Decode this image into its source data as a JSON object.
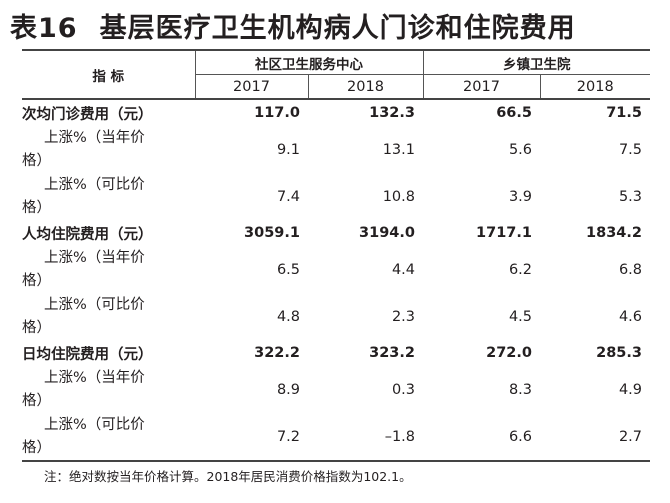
{
  "title": {
    "number": "表16",
    "text": "基层医疗卫生机构病人门诊和住院费用"
  },
  "header": {
    "indicator": "指 标",
    "groups": [
      "社区卫生服务中心",
      "乡镇卫生院"
    ],
    "years": [
      "2017",
      "2018",
      "2017",
      "2018"
    ]
  },
  "rows": [
    {
      "label": "次均门诊费用（元）",
      "values": [
        "117.0",
        "132.3",
        "66.5",
        "71.5"
      ]
    },
    {
      "label1": "上涨%（当年价",
      "label2": "格）",
      "values": [
        "9.1",
        "13.1",
        "5.6",
        "7.5"
      ]
    },
    {
      "label1": "上涨%（可比价",
      "label2": "格）",
      "values": [
        "7.4",
        "10.8",
        "3.9",
        "5.3"
      ]
    },
    {
      "label": "人均住院费用（元）",
      "values": [
        "3059.1",
        "3194.0",
        "1717.1",
        "1834.2"
      ]
    },
    {
      "label1": "上涨%（当年价",
      "label2": "格）",
      "values": [
        "6.5",
        "4.4",
        "6.2",
        "6.8"
      ]
    },
    {
      "label1": "上涨%（可比价",
      "label2": "格）",
      "values": [
        "4.8",
        "2.3",
        "4.5",
        "4.6"
      ]
    },
    {
      "label": "日均住院费用（元）",
      "values": [
        "322.2",
        "323.2",
        "272.0",
        "285.3"
      ]
    },
    {
      "label1": "上涨%（当年价",
      "label2": "格）",
      "values": [
        "8.9",
        "0.3",
        "8.3",
        "4.9"
      ]
    },
    {
      "label1": "上涨%（可比价",
      "label2": "格）",
      "values": [
        "7.2",
        "–1.8",
        "6.6",
        "2.7"
      ]
    }
  ],
  "note": "注：绝对数按当年价格计算。2018年居民消费价格指数为102.1。"
}
